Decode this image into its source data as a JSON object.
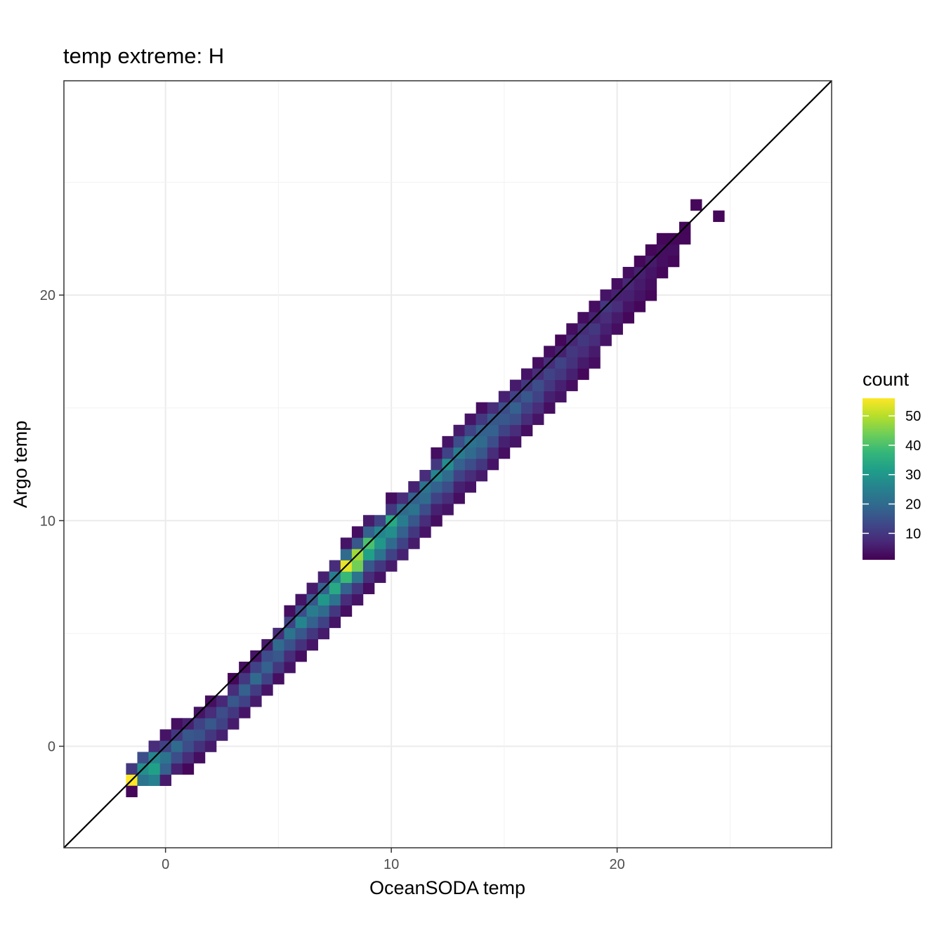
{
  "chart_data": {
    "type": "heatmap",
    "title": "temp extreme: H",
    "xlabel": "OceanSODA temp",
    "ylabel": "Argo temp",
    "xlim": [
      -4.5,
      29.5
    ],
    "ylim": [
      -4.5,
      29.5
    ],
    "xticks": [
      0,
      10,
      20
    ],
    "yticks": [
      0,
      10,
      20
    ],
    "grid": true,
    "bin_width": 0.5,
    "reference_line": {
      "slope": 1,
      "intercept": 0
    },
    "legend": {
      "title": "count",
      "position": "right",
      "min": 1,
      "max": 56,
      "ticks": [
        10,
        20,
        30,
        40,
        50
      ]
    },
    "colormap": [
      "#440154",
      "#482878",
      "#3e4989",
      "#31688e",
      "#26828e",
      "#1f9e89",
      "#35b779",
      "#6ece58",
      "#b5de2b",
      "#fde725"
    ],
    "bins": [
      [
        -1.5,
        -1.5,
        56
      ],
      [
        -1.5,
        -1.0,
        10
      ],
      [
        -1.5,
        -2.0,
        2
      ],
      [
        -1.0,
        -1.5,
        22
      ],
      [
        -1.0,
        -1.0,
        28
      ],
      [
        -1.0,
        -0.5,
        14
      ],
      [
        -0.5,
        -1.5,
        25
      ],
      [
        -0.5,
        -1.0,
        32
      ],
      [
        -0.5,
        -0.5,
        26
      ],
      [
        -0.5,
        0.0,
        8
      ],
      [
        0.0,
        -1.5,
        5
      ],
      [
        0.0,
        -1.0,
        18
      ],
      [
        0.0,
        -0.5,
        22
      ],
      [
        0.0,
        0.0,
        12
      ],
      [
        0.0,
        0.5,
        4
      ],
      [
        0.5,
        -1.0,
        6
      ],
      [
        0.5,
        -0.5,
        14
      ],
      [
        0.5,
        0.0,
        20
      ],
      [
        0.5,
        0.5,
        10
      ],
      [
        0.5,
        1.0,
        3
      ],
      [
        1.0,
        -1.0,
        2
      ],
      [
        1.0,
        -0.5,
        8
      ],
      [
        1.0,
        0.0,
        14
      ],
      [
        1.0,
        0.5,
        16
      ],
      [
        1.0,
        1.0,
        6
      ],
      [
        1.5,
        -0.5,
        3
      ],
      [
        1.5,
        0.0,
        9
      ],
      [
        1.5,
        0.5,
        15
      ],
      [
        1.5,
        1.0,
        12
      ],
      [
        1.5,
        1.5,
        4
      ],
      [
        2.0,
        0.0,
        5
      ],
      [
        2.0,
        0.5,
        10
      ],
      [
        2.0,
        1.0,
        16
      ],
      [
        2.0,
        1.5,
        8
      ],
      [
        2.0,
        2.0,
        3
      ],
      [
        2.5,
        0.5,
        6
      ],
      [
        2.5,
        1.0,
        12
      ],
      [
        2.5,
        1.5,
        14
      ],
      [
        2.5,
        2.0,
        7
      ],
      [
        3.0,
        1.0,
        5
      ],
      [
        3.0,
        1.5,
        10
      ],
      [
        3.0,
        2.0,
        16
      ],
      [
        3.0,
        2.5,
        8
      ],
      [
        3.0,
        3.0,
        2
      ],
      [
        3.5,
        1.5,
        4
      ],
      [
        3.5,
        2.0,
        12
      ],
      [
        3.5,
        2.5,
        18
      ],
      [
        3.5,
        3.0,
        10
      ],
      [
        3.5,
        3.5,
        3
      ],
      [
        4.0,
        2.0,
        5
      ],
      [
        4.0,
        2.5,
        11
      ],
      [
        4.0,
        3.0,
        20
      ],
      [
        4.0,
        3.5,
        12
      ],
      [
        4.0,
        4.0,
        4
      ],
      [
        4.5,
        2.5,
        4
      ],
      [
        4.5,
        3.0,
        12
      ],
      [
        4.5,
        3.5,
        18
      ],
      [
        4.5,
        4.0,
        14
      ],
      [
        4.5,
        4.5,
        5
      ],
      [
        5.0,
        3.0,
        3
      ],
      [
        5.0,
        3.5,
        10
      ],
      [
        5.0,
        4.0,
        16
      ],
      [
        5.0,
        4.5,
        20
      ],
      [
        5.0,
        5.0,
        8
      ],
      [
        5.5,
        3.5,
        4
      ],
      [
        5.5,
        4.0,
        8
      ],
      [
        5.5,
        4.5,
        15
      ],
      [
        5.5,
        5.0,
        22
      ],
      [
        5.5,
        5.5,
        12
      ],
      [
        5.5,
        6.0,
        3
      ],
      [
        6.0,
        4.0,
        3
      ],
      [
        6.0,
        4.5,
        9
      ],
      [
        6.0,
        5.0,
        16
      ],
      [
        6.0,
        5.5,
        26
      ],
      [
        6.0,
        6.0,
        14
      ],
      [
        6.0,
        6.5,
        4
      ],
      [
        6.5,
        4.5,
        4
      ],
      [
        6.5,
        5.0,
        10
      ],
      [
        6.5,
        5.5,
        18
      ],
      [
        6.5,
        6.0,
        24
      ],
      [
        6.5,
        6.5,
        16
      ],
      [
        6.5,
        7.0,
        5
      ],
      [
        7.0,
        5.0,
        5
      ],
      [
        7.0,
        5.5,
        12
      ],
      [
        7.0,
        6.0,
        20
      ],
      [
        7.0,
        6.5,
        30
      ],
      [
        7.0,
        7.0,
        18
      ],
      [
        7.0,
        7.5,
        6
      ],
      [
        7.5,
        5.5,
        4
      ],
      [
        7.5,
        6.0,
        10
      ],
      [
        7.5,
        6.5,
        22
      ],
      [
        7.5,
        7.0,
        34
      ],
      [
        7.5,
        7.5,
        24
      ],
      [
        7.5,
        8.0,
        8
      ],
      [
        8.0,
        6.0,
        3
      ],
      [
        8.0,
        6.5,
        8
      ],
      [
        8.0,
        7.0,
        18
      ],
      [
        8.0,
        7.5,
        38
      ],
      [
        8.0,
        8.0,
        54
      ],
      [
        8.0,
        8.5,
        20
      ],
      [
        8.0,
        9.0,
        4
      ],
      [
        8.5,
        6.5,
        4
      ],
      [
        8.5,
        7.0,
        10
      ],
      [
        8.5,
        7.5,
        22
      ],
      [
        8.5,
        8.0,
        44
      ],
      [
        8.5,
        8.5,
        48
      ],
      [
        8.5,
        9.0,
        16
      ],
      [
        8.5,
        9.5,
        3
      ],
      [
        9.0,
        7.0,
        3
      ],
      [
        9.0,
        7.5,
        8
      ],
      [
        9.0,
        8.0,
        16
      ],
      [
        9.0,
        8.5,
        32
      ],
      [
        9.0,
        9.0,
        40
      ],
      [
        9.0,
        9.5,
        18
      ],
      [
        9.0,
        10.0,
        5
      ],
      [
        9.5,
        7.5,
        4
      ],
      [
        9.5,
        8.0,
        10
      ],
      [
        9.5,
        8.5,
        22
      ],
      [
        9.5,
        9.0,
        30
      ],
      [
        9.5,
        9.5,
        26
      ],
      [
        9.5,
        10.0,
        12
      ],
      [
        10.0,
        8.0,
        5
      ],
      [
        10.0,
        8.5,
        12
      ],
      [
        10.0,
        9.0,
        20
      ],
      [
        10.0,
        9.5,
        28
      ],
      [
        10.0,
        10.0,
        34
      ],
      [
        10.0,
        10.5,
        10
      ],
      [
        10.0,
        11.0,
        3
      ],
      [
        10.5,
        8.5,
        6
      ],
      [
        10.5,
        9.0,
        12
      ],
      [
        10.5,
        9.5,
        18
      ],
      [
        10.5,
        10.0,
        24
      ],
      [
        10.5,
        10.5,
        20
      ],
      [
        10.5,
        11.0,
        8
      ],
      [
        11.0,
        9.0,
        5
      ],
      [
        11.0,
        9.5,
        10
      ],
      [
        11.0,
        10.0,
        16
      ],
      [
        11.0,
        10.5,
        22
      ],
      [
        11.0,
        11.0,
        18
      ],
      [
        11.0,
        11.5,
        6
      ],
      [
        11.5,
        9.5,
        4
      ],
      [
        11.5,
        10.0,
        8
      ],
      [
        11.5,
        10.5,
        14
      ],
      [
        11.5,
        11.0,
        20
      ],
      [
        11.5,
        11.5,
        22
      ],
      [
        11.5,
        12.0,
        8
      ],
      [
        12.0,
        10.0,
        3
      ],
      [
        12.0,
        10.5,
        6
      ],
      [
        12.0,
        11.0,
        12
      ],
      [
        12.0,
        11.5,
        18
      ],
      [
        12.0,
        12.0,
        26
      ],
      [
        12.0,
        12.5,
        10
      ],
      [
        12.0,
        13.0,
        3
      ],
      [
        12.5,
        10.5,
        4
      ],
      [
        12.5,
        11.0,
        8
      ],
      [
        12.5,
        11.5,
        14
      ],
      [
        12.5,
        12.0,
        20
      ],
      [
        12.5,
        12.5,
        28
      ],
      [
        12.5,
        13.0,
        12
      ],
      [
        12.5,
        13.5,
        4
      ],
      [
        13.0,
        11.0,
        3
      ],
      [
        13.0,
        11.5,
        6
      ],
      [
        13.0,
        12.0,
        12
      ],
      [
        13.0,
        12.5,
        18
      ],
      [
        13.0,
        13.0,
        24
      ],
      [
        13.0,
        13.5,
        14
      ],
      [
        13.0,
        14.0,
        5
      ],
      [
        13.5,
        11.5,
        4
      ],
      [
        13.5,
        12.0,
        8
      ],
      [
        13.5,
        12.5,
        14
      ],
      [
        13.5,
        13.0,
        20
      ],
      [
        13.5,
        13.5,
        22
      ],
      [
        13.5,
        14.0,
        12
      ],
      [
        13.5,
        14.5,
        4
      ],
      [
        14.0,
        12.0,
        5
      ],
      [
        14.0,
        12.5,
        10
      ],
      [
        14.0,
        13.0,
        16
      ],
      [
        14.0,
        13.5,
        20
      ],
      [
        14.0,
        14.0,
        18
      ],
      [
        14.0,
        14.5,
        10
      ],
      [
        14.0,
        15.0,
        3
      ],
      [
        14.5,
        12.5,
        4
      ],
      [
        14.5,
        13.0,
        8
      ],
      [
        14.5,
        13.5,
        14
      ],
      [
        14.5,
        14.0,
        18
      ],
      [
        14.5,
        14.5,
        16
      ],
      [
        14.5,
        15.0,
        8
      ],
      [
        15.0,
        13.0,
        3
      ],
      [
        15.0,
        13.5,
        6
      ],
      [
        15.0,
        14.0,
        12
      ],
      [
        15.0,
        14.5,
        16
      ],
      [
        15.0,
        15.0,
        14
      ],
      [
        15.0,
        15.5,
        6
      ],
      [
        15.5,
        13.5,
        4
      ],
      [
        15.5,
        14.0,
        8
      ],
      [
        15.5,
        14.5,
        14
      ],
      [
        15.5,
        15.0,
        18
      ],
      [
        15.5,
        15.5,
        12
      ],
      [
        15.5,
        16.0,
        5
      ],
      [
        16.0,
        14.0,
        3
      ],
      [
        16.0,
        14.5,
        8
      ],
      [
        16.0,
        15.0,
        12
      ],
      [
        16.0,
        15.5,
        16
      ],
      [
        16.0,
        16.0,
        10
      ],
      [
        16.0,
        16.5,
        4
      ],
      [
        16.5,
        14.5,
        4
      ],
      [
        16.5,
        15.0,
        8
      ],
      [
        16.5,
        15.5,
        12
      ],
      [
        16.5,
        16.0,
        14
      ],
      [
        16.5,
        16.5,
        8
      ],
      [
        16.5,
        17.0,
        3
      ],
      [
        17.0,
        15.0,
        3
      ],
      [
        17.0,
        15.5,
        6
      ],
      [
        17.0,
        16.0,
        10
      ],
      [
        17.0,
        16.5,
        12
      ],
      [
        17.0,
        17.0,
        8
      ],
      [
        17.0,
        17.5,
        3
      ],
      [
        17.5,
        15.5,
        4
      ],
      [
        17.5,
        16.0,
        6
      ],
      [
        17.5,
        16.5,
        10
      ],
      [
        17.5,
        17.0,
        12
      ],
      [
        17.5,
        17.5,
        6
      ],
      [
        17.5,
        18.0,
        2
      ],
      [
        18.0,
        16.0,
        3
      ],
      [
        18.0,
        16.5,
        6
      ],
      [
        18.0,
        17.0,
        9
      ],
      [
        18.0,
        17.5,
        10
      ],
      [
        18.0,
        18.0,
        7
      ],
      [
        18.0,
        18.5,
        3
      ],
      [
        18.5,
        16.5,
        2
      ],
      [
        18.5,
        17.0,
        5
      ],
      [
        18.5,
        17.5,
        8
      ],
      [
        18.5,
        18.0,
        10
      ],
      [
        18.5,
        18.5,
        8
      ],
      [
        18.5,
        19.0,
        3
      ],
      [
        19.0,
        17.0,
        3
      ],
      [
        19.0,
        17.5,
        5
      ],
      [
        19.0,
        18.0,
        8
      ],
      [
        19.0,
        18.5,
        10
      ],
      [
        19.0,
        19.0,
        6
      ],
      [
        19.0,
        19.5,
        3
      ],
      [
        19.5,
        18.0,
        4
      ],
      [
        19.5,
        18.5,
        6
      ],
      [
        19.5,
        19.0,
        8
      ],
      [
        19.5,
        19.5,
        10
      ],
      [
        19.5,
        20.0,
        4
      ],
      [
        20.0,
        18.5,
        3
      ],
      [
        20.0,
        19.0,
        5
      ],
      [
        20.0,
        19.5,
        8
      ],
      [
        20.0,
        20.0,
        6
      ],
      [
        20.0,
        20.5,
        3
      ],
      [
        20.5,
        19.0,
        2
      ],
      [
        20.5,
        19.5,
        4
      ],
      [
        20.5,
        20.0,
        6
      ],
      [
        20.5,
        20.5,
        7
      ],
      [
        20.5,
        21.0,
        3
      ],
      [
        21.0,
        19.5,
        2
      ],
      [
        21.0,
        20.0,
        4
      ],
      [
        21.0,
        20.5,
        5
      ],
      [
        21.0,
        21.0,
        6
      ],
      [
        21.0,
        21.5,
        2
      ],
      [
        21.5,
        20.0,
        2
      ],
      [
        21.5,
        20.5,
        3
      ],
      [
        21.5,
        21.0,
        4
      ],
      [
        21.5,
        21.5,
        5
      ],
      [
        21.5,
        22.0,
        2
      ],
      [
        22.0,
        21.0,
        2
      ],
      [
        22.0,
        21.5,
        3
      ],
      [
        22.0,
        22.0,
        3
      ],
      [
        22.0,
        22.5,
        2
      ],
      [
        22.5,
        21.5,
        2
      ],
      [
        22.5,
        22.0,
        3
      ],
      [
        22.5,
        22.5,
        2
      ],
      [
        23.0,
        22.5,
        2
      ],
      [
        23.0,
        23.0,
        2
      ],
      [
        23.5,
        24.0,
        2
      ],
      [
        24.5,
        23.5,
        2
      ]
    ]
  }
}
